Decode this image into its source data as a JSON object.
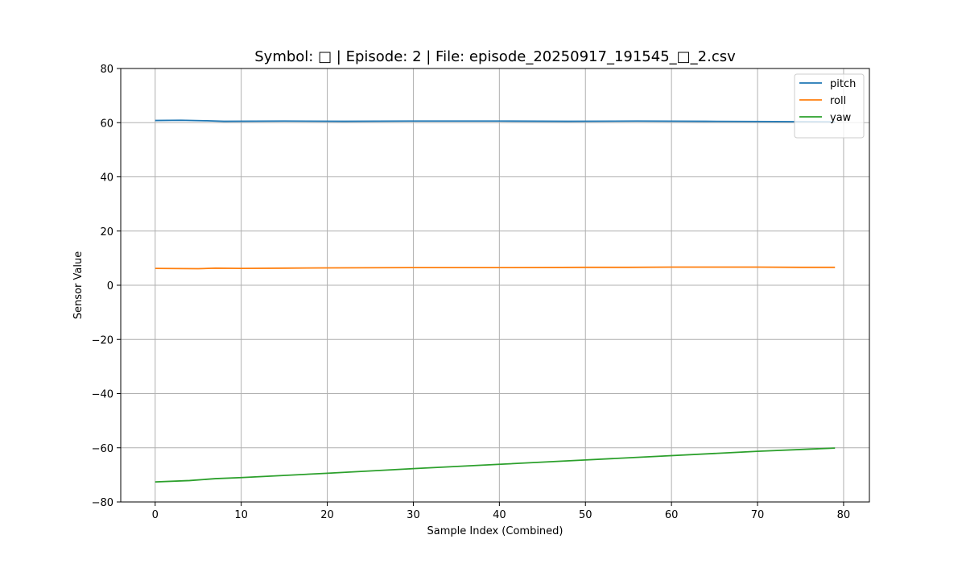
{
  "chart_data": {
    "type": "line",
    "title": "Symbol: □ | Episode: 2 | File: episode_20250917_191545_□_2.csv",
    "xlabel": "Sample Index (Combined)",
    "ylabel": "Sensor Value",
    "xlim": [
      -4,
      83
    ],
    "ylim": [
      -80,
      80
    ],
    "xticks": [
      0,
      10,
      20,
      30,
      40,
      50,
      60,
      70,
      80
    ],
    "yticks": [
      -80,
      -60,
      -40,
      -20,
      0,
      20,
      40,
      60,
      80
    ],
    "xtick_labels": [
      "0",
      "10",
      "20",
      "30",
      "40",
      "50",
      "60",
      "70",
      "80"
    ],
    "ytick_labels": [
      "−80",
      "−60",
      "−40",
      "−20",
      "0",
      "20",
      "40",
      "60",
      "80"
    ],
    "grid": true,
    "legend_position": "top-right",
    "series": [
      {
        "name": "pitch",
        "color": "#1f77b4",
        "points": [
          [
            0,
            60.8
          ],
          [
            3,
            60.9
          ],
          [
            6,
            60.7
          ],
          [
            8,
            60.5
          ],
          [
            15,
            60.6
          ],
          [
            22,
            60.5
          ],
          [
            30,
            60.6
          ],
          [
            40,
            60.6
          ],
          [
            48,
            60.5
          ],
          [
            56,
            60.6
          ],
          [
            64,
            60.5
          ],
          [
            72,
            60.4
          ],
          [
            79,
            60.3
          ]
        ]
      },
      {
        "name": "roll",
        "color": "#ff7f0e",
        "points": [
          [
            0,
            6.2
          ],
          [
            5,
            6.1
          ],
          [
            7,
            6.3
          ],
          [
            10,
            6.2
          ],
          [
            15,
            6.3
          ],
          [
            20,
            6.4
          ],
          [
            30,
            6.5
          ],
          [
            40,
            6.5
          ],
          [
            50,
            6.6
          ],
          [
            55,
            6.6
          ],
          [
            60,
            6.7
          ],
          [
            65,
            6.7
          ],
          [
            70,
            6.7
          ],
          [
            75,
            6.6
          ],
          [
            79,
            6.6
          ]
        ]
      },
      {
        "name": "yaw",
        "color": "#2ca02c",
        "points": [
          [
            0,
            -72.6
          ],
          [
            4,
            -72.1
          ],
          [
            7,
            -71.4
          ],
          [
            10,
            -71.0
          ],
          [
            20,
            -69.4
          ],
          [
            30,
            -67.7
          ],
          [
            40,
            -66.1
          ],
          [
            50,
            -64.5
          ],
          [
            60,
            -62.9
          ],
          [
            70,
            -61.3
          ],
          [
            79,
            -60.1
          ]
        ]
      }
    ]
  }
}
